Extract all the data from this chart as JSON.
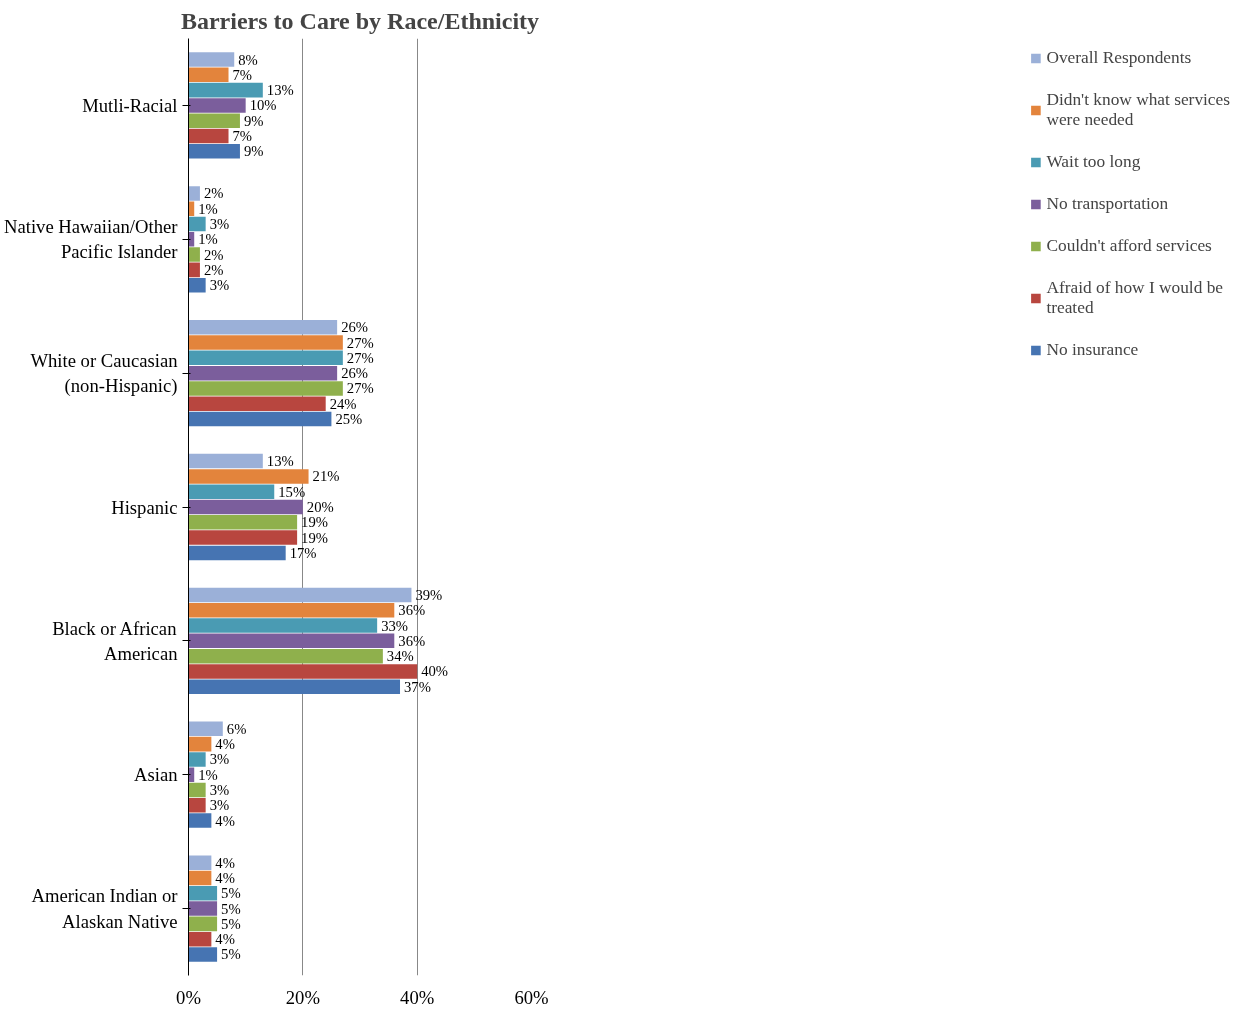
{
  "chart_data": {
    "type": "bar",
    "orientation": "horizontal",
    "title": "Barriers to Care by Race/Ethnicity",
    "categories": [
      "Mutli-Racial",
      "Native Hawaiian/Other Pacific Islander",
      "White or Caucasian (non-Hispanic)",
      "Hispanic",
      "Black or African American",
      "Asian",
      "American Indian or Alaskan Native"
    ],
    "series": [
      {
        "name": "Overall Respondents",
        "color": "#9bb0d8",
        "values": [
          8,
          2,
          26,
          13,
          39,
          6,
          4
        ],
        "value_labels": [
          "8%",
          "2%",
          "26%",
          "13%",
          "39%",
          "6%",
          "4%"
        ]
      },
      {
        "name": "Didn't know what services were needed",
        "color": "#e3843c",
        "values": [
          7,
          1,
          27,
          21,
          36,
          4,
          4
        ],
        "value_labels": [
          "7%",
          "1%",
          "27%",
          "21%",
          "36%",
          "4%",
          "4%"
        ]
      },
      {
        "name": "Wait too long",
        "color": "#4a9bb3",
        "values": [
          13,
          3,
          27,
          15,
          33,
          3,
          5
        ],
        "value_labels": [
          "13%",
          "3%",
          "27%",
          "15%",
          "33%",
          "3%",
          "5%"
        ]
      },
      {
        "name": "No transportation",
        "color": "#7b5e9c",
        "values": [
          10,
          1,
          26,
          20,
          36,
          1,
          5
        ],
        "value_labels": [
          "10%",
          "1%",
          "26%",
          "20%",
          "36%",
          "1%",
          "5%"
        ]
      },
      {
        "name": "Couldn't afford services",
        "color": "#8fb04c",
        "values": [
          9,
          2,
          27,
          19,
          34,
          3,
          5
        ],
        "value_labels": [
          "9%",
          "2%",
          "27%",
          "19%",
          "34%",
          "3%",
          "5%"
        ]
      },
      {
        "name": "Afraid of how I would be treated",
        "color": "#b8463f",
        "values": [
          7,
          2,
          24,
          19,
          40,
          3,
          4
        ],
        "value_labels": [
          "7%",
          "2%",
          "24%",
          "19%",
          "40%",
          "3%",
          "4%"
        ]
      },
      {
        "name": "No insurance",
        "color": "#4674b2",
        "values": [
          9,
          3,
          25,
          17,
          37,
          4,
          5
        ],
        "value_labels": [
          "9%",
          "3%",
          "25%",
          "17%",
          "37%",
          "4%",
          "5%"
        ]
      }
    ],
    "xlim": [
      0,
      60
    ],
    "xticks": [
      {
        "value": 0,
        "label": "0%"
      },
      {
        "value": 20,
        "label": "20%"
      },
      {
        "value": 40,
        "label": "40%"
      },
      {
        "value": 60,
        "label": "60%"
      }
    ],
    "grid": "x",
    "legend": "right"
  }
}
